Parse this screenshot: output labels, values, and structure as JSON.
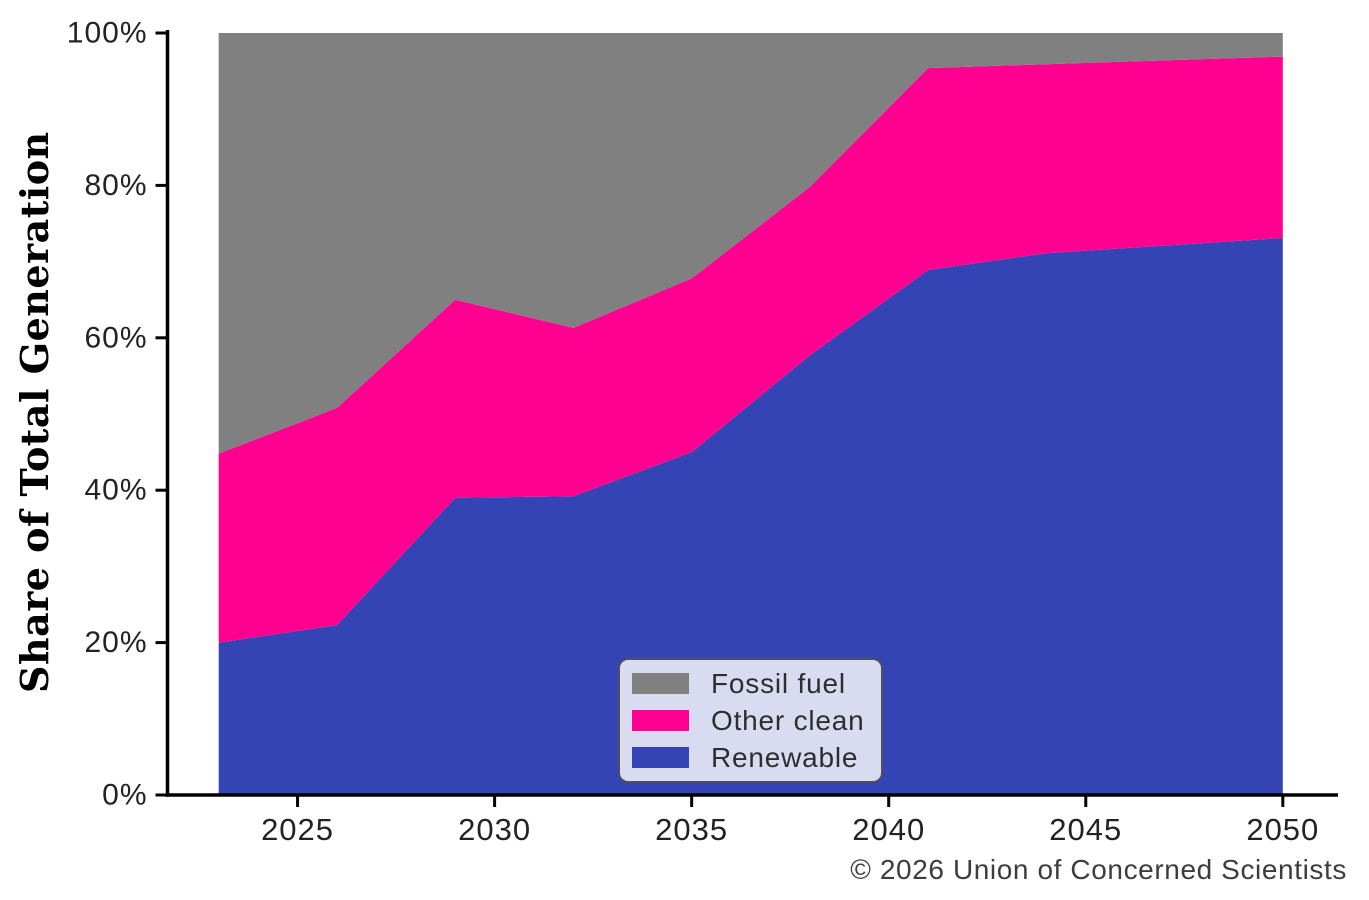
{
  "page": {
    "background": "#ffffff"
  },
  "axes": {
    "y_label": "Share of Total Generation",
    "y_tick_labels": [
      "0%",
      "20%",
      "40%",
      "60%",
      "80%",
      "100%"
    ],
    "y_tick_values": [
      0,
      20,
      40,
      60,
      80,
      100
    ],
    "x_tick_labels": [
      "2025",
      "2030",
      "2035",
      "2040",
      "2045",
      "2050"
    ],
    "x_tick_values": [
      2025,
      2030,
      2035,
      2040,
      2045,
      2050
    ],
    "axis_color": "#000000",
    "tick_text_color": "#232323"
  },
  "legend": {
    "background": "#d9dcf0",
    "border_color": "#4d4f5c",
    "items": [
      {
        "label": "Fossil fuel",
        "color": "#808080"
      },
      {
        "label": "Other clean",
        "color": "#ff0090"
      },
      {
        "label": "Renewable",
        "color": "#3444b4"
      }
    ]
  },
  "footer": {
    "copyright": "© 2026 Union of Concerned Scientists"
  },
  "chart_data": {
    "type": "area",
    "stacked": true,
    "title": "",
    "xlabel": "",
    "ylabel": "Share of Total Generation",
    "x": [
      2023,
      2026,
      2029,
      2032,
      2035,
      2038,
      2041,
      2044,
      2047,
      2050
    ],
    "series": [
      {
        "name": "Renewable",
        "color": "#3444b4",
        "values": [
          20.0,
          22.3,
          39.0,
          39.2,
          45.0,
          57.7,
          68.9,
          71.1,
          72.1,
          73.1
        ]
      },
      {
        "name": "Other clean",
        "color": "#ff0090",
        "values": [
          24.8,
          28.5,
          26.0,
          22.1,
          22.8,
          22.1,
          26.5,
          24.8,
          24.3,
          23.8
        ]
      },
      {
        "name": "Fossil fuel",
        "color": "#808080",
        "values": [
          55.2,
          49.2,
          35.0,
          38.7,
          32.2,
          20.2,
          4.6,
          4.1,
          3.6,
          3.1
        ]
      }
    ],
    "ylim": [
      0,
      100
    ],
    "xlim": [
      2021.7,
      2051.4
    ],
    "y_unit": "%",
    "grid": false,
    "legend_position": "lower center",
    "legend_order": [
      "Fossil fuel",
      "Other clean",
      "Renewable"
    ]
  }
}
